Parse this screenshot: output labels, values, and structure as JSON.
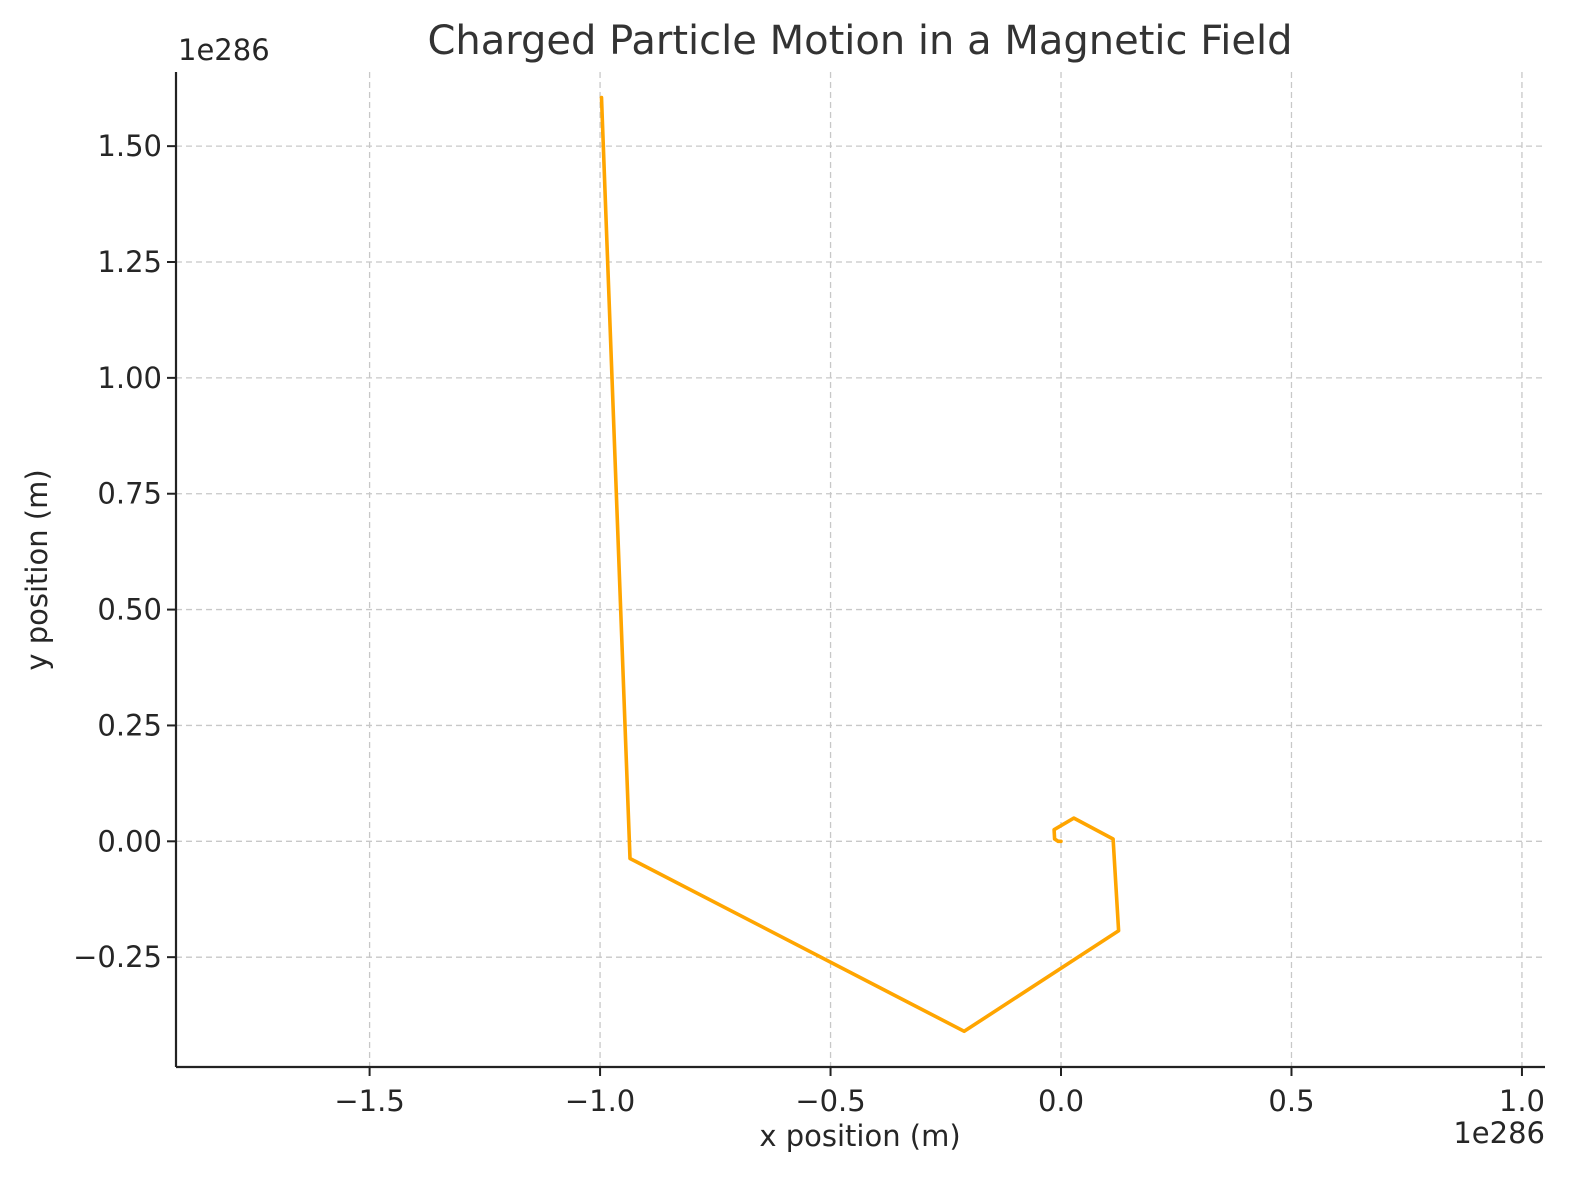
{
  "chart_data": {
    "type": "line",
    "title": "Charged Particle Motion in a Magnetic Field",
    "xlabel": "x position (m)",
    "ylabel": "y position (m)",
    "x_offset_label": "1e286",
    "y_offset_label": "1e286",
    "xlim": [
      -1.92,
      1.05
    ],
    "ylim": [
      -0.487,
      1.66
    ],
    "xticks": [
      {
        "value": -1.5,
        "label": "−1.5"
      },
      {
        "value": -1.0,
        "label": "−1.0"
      },
      {
        "value": -0.5,
        "label": "−0.5"
      },
      {
        "value": 0.0,
        "label": "0.0"
      },
      {
        "value": 0.5,
        "label": "0.5"
      },
      {
        "value": 1.0,
        "label": "1.0"
      }
    ],
    "yticks": [
      {
        "value": -0.25,
        "label": "−0.25"
      },
      {
        "value": 0.0,
        "label": "0.00"
      },
      {
        "value": 0.25,
        "label": "0.25"
      },
      {
        "value": 0.5,
        "label": "0.50"
      },
      {
        "value": 0.75,
        "label": "0.75"
      },
      {
        "value": 1.0,
        "label": "1.00"
      },
      {
        "value": 1.25,
        "label": "1.25"
      },
      {
        "value": 1.5,
        "label": "1.50"
      }
    ],
    "grid": true,
    "series": [
      {
        "color": "#FFA500",
        "x": [
          0.0,
          -0.006,
          -0.014,
          -0.015,
          0.028,
          0.113,
          0.125,
          -0.21,
          -0.935,
          -0.997
        ],
        "y": [
          0.0,
          0.0,
          0.005,
          0.025,
          0.05,
          0.005,
          -0.193,
          -0.41,
          -0.037,
          1.605
        ]
      }
    ]
  }
}
